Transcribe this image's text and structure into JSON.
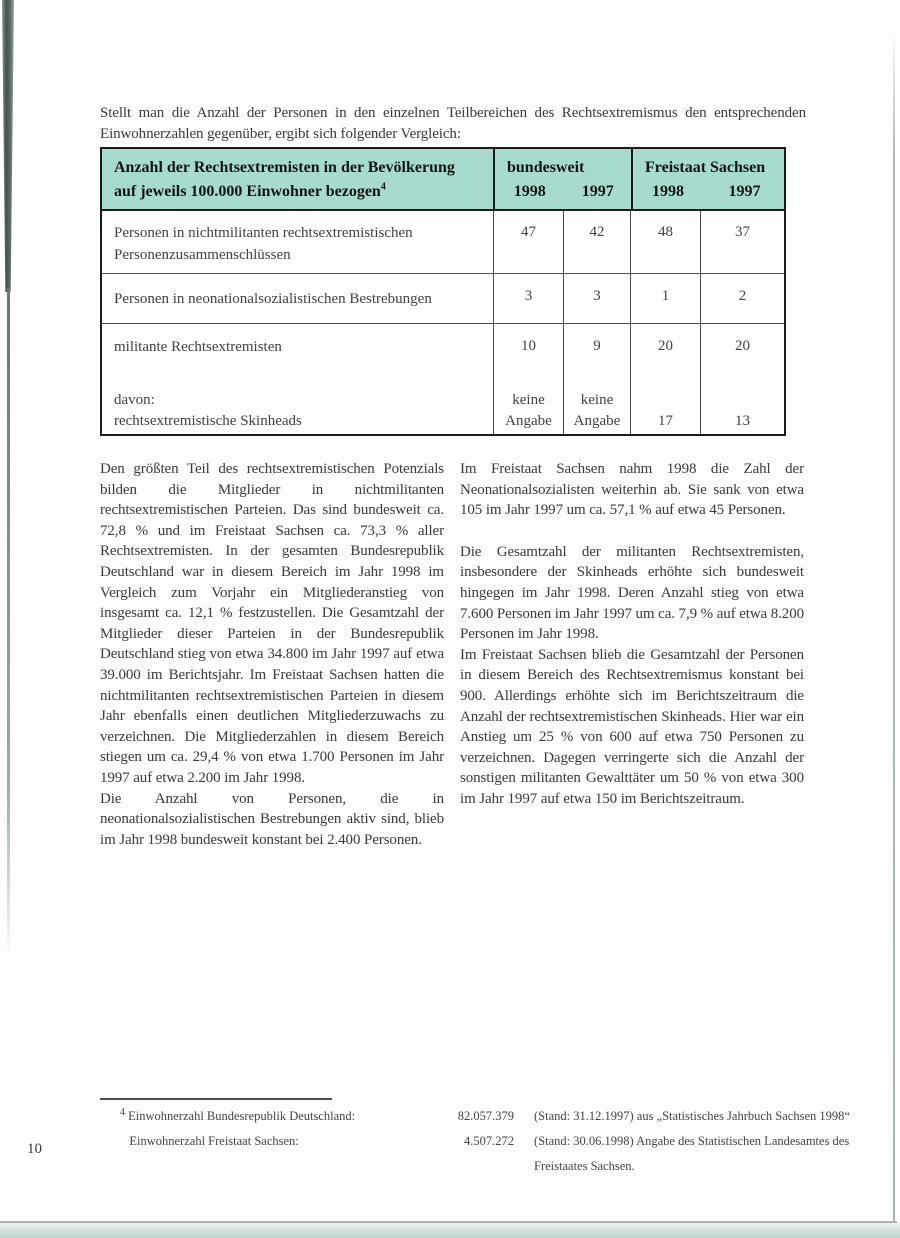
{
  "accent_color": "#a7dbd0",
  "page": {
    "number": "10",
    "intro": "Stellt man die Anzahl der Personen in den einzelnen Teilbereichen des Rechtsextremismus den entsprechenden Einwohnerzahlen gegenüber, ergibt sich folgender Vergleich:"
  },
  "table": {
    "header": {
      "title_line1": "Anzahl der Rechtsextremisten in der Bevölkerung",
      "title_line2": "auf jeweils 100.000 Einwohner bezogen",
      "footnote_marker": "4",
      "group1_label": "bundesweit",
      "group2_label": "Freistaat Sachsen",
      "year_a": "1998",
      "year_b": "1997"
    },
    "rows": [
      {
        "label": "Personen in nichtmilitanten rechtsextremistischen Personenzusammenschlüssen",
        "values": [
          "47",
          "42",
          "48",
          "37"
        ]
      },
      {
        "label": "Personen in neonationalsozialistischen Bestrebungen",
        "values": [
          "3",
          "3",
          "1",
          "2"
        ]
      },
      {
        "label": "militante Rechtsextremisten",
        "values": [
          "10",
          "9",
          "20",
          "20"
        ]
      },
      {
        "label_line1": "davon:",
        "label_line2": "rechtsextremistische Skinheads",
        "values_line1": [
          "keine",
          "keine",
          "",
          ""
        ],
        "values_line2": [
          "Angabe",
          "Angabe",
          "17",
          "13"
        ]
      }
    ]
  },
  "body": {
    "left": {
      "p1": "Den größten Teil des rechtsextremistischen Potenzials bilden die Mitglieder in nichtmilitanten rechtsextremistischen Parteien. Das sind bundesweit ca. 72,8 % und im Freistaat Sachsen ca. 73,3 % aller Rechtsextremisten. In der gesamten Bundesrepublik Deutschland war in diesem Bereich im Jahr 1998 im Vergleich zum Vorjahr ein Mitgliederanstieg von insgesamt ca. 12,1 % festzustellen. Die Gesamtzahl der Mitglieder dieser Parteien in der Bundesrepublik Deutschland stieg von etwa 34.800 im Jahr 1997 auf etwa 39.000 im Berichtsjahr. Im Freistaat Sachsen hatten die nichtmilitanten rechtsextremistischen Parteien in diesem Jahr ebenfalls einen deutlichen Mitgliederzuwachs zu verzeichnen. Die Mitgliederzahlen in diesem Bereich stiegen um ca. 29,4 % von etwa 1.700 Personen im Jahr 1997 auf etwa 2.200 im Jahr 1998.",
      "p2": "Die Anzahl von Personen, die in neonationalsozialistischen Bestrebungen aktiv sind, blieb im Jahr 1998 bundesweit konstant bei 2.400 Personen."
    },
    "right": {
      "p1": "Im Freistaat Sachsen nahm 1998 die Zahl der Neonationalsozialisten weiterhin ab. Sie sank von etwa 105 im Jahr 1997 um ca. 57,1 % auf etwa 45 Personen.",
      "p2": "Die Gesamtzahl der militanten Rechtsextremisten, insbesondere der Skinheads erhöhte sich bundesweit hingegen im Jahr 1998. Deren Anzahl stieg von etwa 7.600 Personen im Jahr 1997 um ca. 7,9 % auf etwa 8.200 Personen im Jahr 1998.",
      "p3": "Im Freistaat Sachsen blieb die Gesamtzahl der Personen in diesem Bereich des Rechtsextremismus konstant bei 900. Allerdings erhöhte sich im Berichtszeitraum die Anzahl der rechtsextremistischen Skinheads. Hier war ein Anstieg um 25 % von 600 auf etwa 750 Personen zu verzeichnen. Dagegen verringerte sich die Anzahl der sonstigen militanten Gewalttäter um 50 % von etwa 300 im Jahr 1997 auf etwa 150 im Berichtszeitraum."
    }
  },
  "footnote": {
    "marker": "4",
    "row1": {
      "label": "Einwohnerzahl Bundesrepublik Deutschland:",
      "value": "82.057.379",
      "note": "(Stand: 31.12.1997) aus „Statistisches Jahrbuch Sachsen 1998“"
    },
    "row2": {
      "label": "Einwohnerzahl Freistaat Sachsen:",
      "value": "4.507.272",
      "note": "(Stand: 30.06.1998) Angabe des Statistischen Landesamtes des Freistaates Sachsen."
    }
  }
}
